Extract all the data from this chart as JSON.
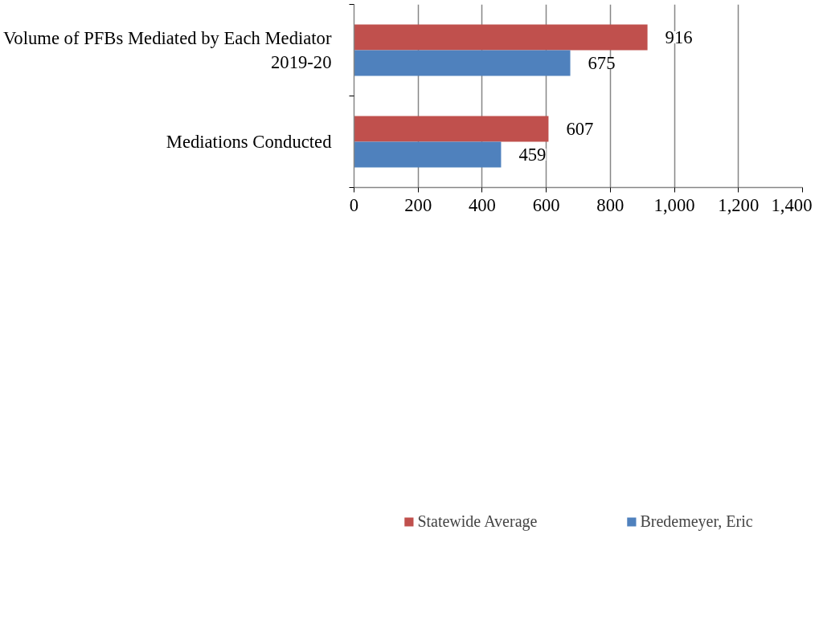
{
  "chart_data": {
    "type": "bar",
    "orientation": "horizontal",
    "categories": [
      "Volume of PFBs Mediated by Each Mediator 2019-20",
      "Mediations Conducted"
    ],
    "series": [
      {
        "name": "Statewide Average",
        "color": "#c0504d",
        "values": [
          916,
          607
        ]
      },
      {
        "name": "Bredemeyer, Eric",
        "color": "#4f81bd",
        "values": [
          675,
          459
        ]
      }
    ],
    "xlim": [
      0,
      1400
    ],
    "xticks": [
      0,
      200,
      400,
      600,
      800,
      {
        "value": 1000,
        "label": "1,000"
      },
      {
        "value": 1200,
        "label": "1,200"
      },
      {
        "value": 1400,
        "label": "1,400"
      }
    ],
    "grid": "x",
    "legend": "bottom",
    "data_labels": true
  }
}
